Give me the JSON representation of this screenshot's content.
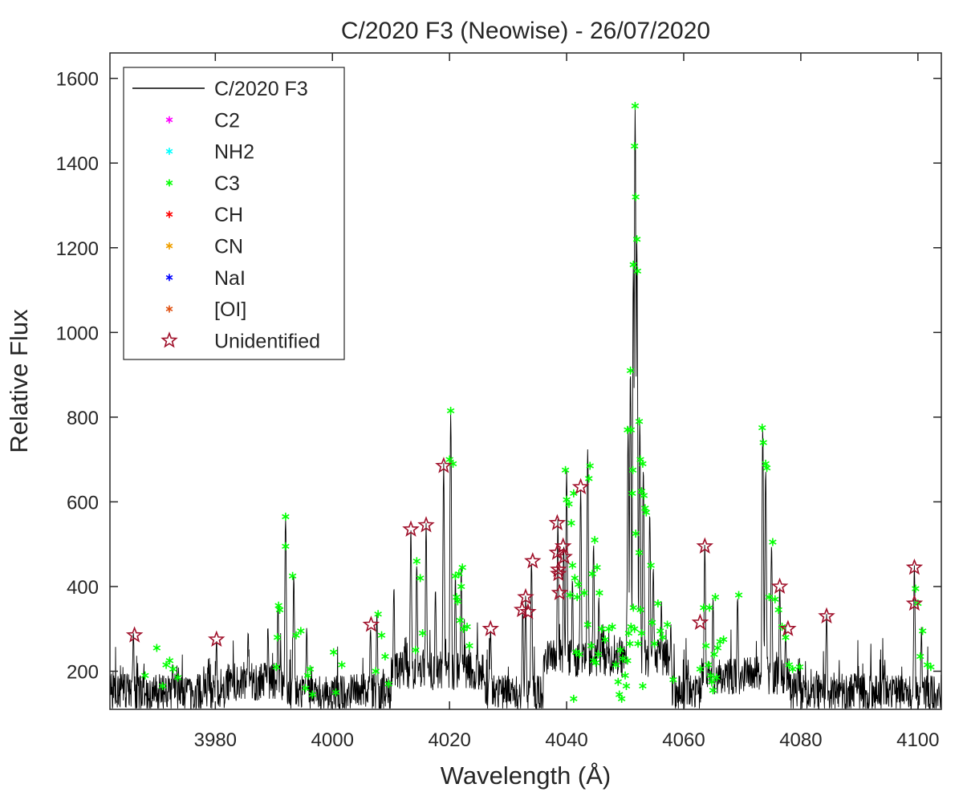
{
  "chart_data": {
    "type": "line",
    "title": "C/2020 F3 (Neowise) - 26/07/2020",
    "xlabel": "Wavelength (Å)",
    "ylabel": "Relative Flux",
    "xlim": [
      3962,
      4104
    ],
    "ylim": [
      110,
      1660
    ],
    "x_ticks": [
      3980,
      4000,
      4020,
      4040,
      4060,
      4080,
      4100
    ],
    "y_ticks": [
      200,
      400,
      600,
      800,
      1000,
      1200,
      1400,
      1600
    ],
    "grid": false,
    "legend_position": "top-left",
    "legend": [
      {
        "label": "C/2020 F3",
        "marker": "line",
        "color": "#000000"
      },
      {
        "label": "C2",
        "marker": "asterisk",
        "color": "#ff00ff"
      },
      {
        "label": "NH2",
        "marker": "asterisk",
        "color": "#00ffff"
      },
      {
        "label": "C3",
        "marker": "asterisk",
        "color": "#00ff00"
      },
      {
        "label": "CH",
        "marker": "asterisk",
        "color": "#ff0000"
      },
      {
        "label": "CN",
        "marker": "asterisk",
        "color": "#f0a000"
      },
      {
        "label": "NaI",
        "marker": "asterisk",
        "color": "#0000ff"
      },
      {
        "label": "[OI]",
        "marker": "asterisk",
        "color": "#e05010"
      },
      {
        "label": "Unidentified",
        "marker": "pentagram",
        "color": "#a0102a"
      }
    ],
    "spectrum_peaks": [
      {
        "x": 3966.0,
        "y": 285
      },
      {
        "x": 3972.7,
        "y": 225
      },
      {
        "x": 3980.2,
        "y": 275
      },
      {
        "x": 3985.6,
        "y": 300
      },
      {
        "x": 3989.0,
        "y": 295
      },
      {
        "x": 3990.7,
        "y": 355
      },
      {
        "x": 3992.0,
        "y": 565
      },
      {
        "x": 3993.4,
        "y": 420
      },
      {
        "x": 3995.6,
        "y": 300
      },
      {
        "x": 4006.5,
        "y": 310
      },
      {
        "x": 4007.6,
        "y": 335
      },
      {
        "x": 4010.5,
        "y": 400
      },
      {
        "x": 4013.4,
        "y": 535
      },
      {
        "x": 4014.4,
        "y": 460
      },
      {
        "x": 4016.0,
        "y": 545
      },
      {
        "x": 4017.6,
        "y": 400
      },
      {
        "x": 4019.0,
        "y": 685
      },
      {
        "x": 4020.2,
        "y": 815
      },
      {
        "x": 4021.0,
        "y": 420
      },
      {
        "x": 4022.0,
        "y": 440
      },
      {
        "x": 4027.0,
        "y": 300
      },
      {
        "x": 4032.5,
        "y": 345
      },
      {
        "x": 4033.0,
        "y": 375
      },
      {
        "x": 4034.0,
        "y": 460
      },
      {
        "x": 4038.5,
        "y": 550
      },
      {
        "x": 4039.5,
        "y": 495
      },
      {
        "x": 4040.0,
        "y": 675
      },
      {
        "x": 4041.0,
        "y": 420
      },
      {
        "x": 4042.4,
        "y": 635
      },
      {
        "x": 4043.6,
        "y": 730
      },
      {
        "x": 4044.6,
        "y": 505
      },
      {
        "x": 4045.5,
        "y": 380
      },
      {
        "x": 4050.5,
        "y": 770
      },
      {
        "x": 4050.9,
        "y": 910
      },
      {
        "x": 4051.4,
        "y": 1160
      },
      {
        "x": 4051.7,
        "y": 1535
      },
      {
        "x": 4052.0,
        "y": 1220
      },
      {
        "x": 4052.5,
        "y": 790
      },
      {
        "x": 4053.1,
        "y": 685
      },
      {
        "x": 4054.2,
        "y": 575
      },
      {
        "x": 4054.8,
        "y": 450
      },
      {
        "x": 4056.2,
        "y": 355
      },
      {
        "x": 4057.8,
        "y": 310
      },
      {
        "x": 4063.6,
        "y": 495
      },
      {
        "x": 4065.0,
        "y": 375
      },
      {
        "x": 4069.2,
        "y": 380
      },
      {
        "x": 4073.5,
        "y": 770
      },
      {
        "x": 4074.0,
        "y": 680
      },
      {
        "x": 4075.0,
        "y": 505
      },
      {
        "x": 4076.4,
        "y": 400
      },
      {
        "x": 4077.4,
        "y": 300
      },
      {
        "x": 4084.4,
        "y": 330
      },
      {
        "x": 4099.4,
        "y": 445
      },
      {
        "x": 4100.6,
        "y": 295
      }
    ],
    "series": [
      {
        "name": "C3",
        "marker": "asterisk",
        "color": "#00ff00",
        "points": [
          [
            3968,
            190
          ],
          [
            3970,
            255
          ],
          [
            3971,
            165
          ],
          [
            3971.6,
            215
          ],
          [
            3972.2,
            225
          ],
          [
            3972.8,
            205
          ],
          [
            3973.6,
            185
          ],
          [
            3990.4,
            210
          ],
          [
            3990.6,
            280
          ],
          [
            3990.8,
            355
          ],
          [
            3991.0,
            345
          ],
          [
            3992.0,
            565
          ],
          [
            3992.0,
            495
          ],
          [
            3993.2,
            425
          ],
          [
            3993.8,
            285
          ],
          [
            3994.6,
            295
          ],
          [
            3995.4,
            160
          ],
          [
            3995.8,
            190
          ],
          [
            3996.2,
            205
          ],
          [
            3996.6,
            145
          ],
          [
            4000.2,
            245
          ],
          [
            4000.6,
            150
          ],
          [
            4001.6,
            215
          ],
          [
            4007.4,
            200
          ],
          [
            4007.8,
            335
          ],
          [
            4008.4,
            285
          ],
          [
            4009.0,
            235
          ],
          [
            4009.6,
            170
          ],
          [
            4014.2,
            250
          ],
          [
            4014.4,
            460
          ],
          [
            4015.0,
            420
          ],
          [
            4015.4,
            290
          ],
          [
            4020.0,
            700
          ],
          [
            4020.2,
            815
          ],
          [
            4020.6,
            690
          ],
          [
            4021.0,
            425
          ],
          [
            4021.2,
            375
          ],
          [
            4021.6,
            430
          ],
          [
            4022.2,
            445
          ],
          [
            4022.0,
            400
          ],
          [
            4021.4,
            365
          ],
          [
            4021.8,
            320
          ],
          [
            4022.4,
            300
          ],
          [
            4023.0,
            305
          ],
          [
            4023.4,
            260
          ],
          [
            4039.8,
            675
          ],
          [
            4040.0,
            605
          ],
          [
            4040.4,
            595
          ],
          [
            4040.8,
            550
          ],
          [
            4041.2,
            620
          ],
          [
            4041.0,
            450
          ],
          [
            4041.4,
            420
          ],
          [
            4041.8,
            375
          ],
          [
            4042.0,
            405
          ],
          [
            4041.6,
            245
          ],
          [
            4042.2,
            240
          ],
          [
            4040.6,
            380
          ],
          [
            4041.2,
            135
          ],
          [
            4043.8,
            655
          ],
          [
            4044.0,
            685
          ],
          [
            4044.4,
            430
          ],
          [
            4044.8,
            510
          ],
          [
            4045.2,
            445
          ],
          [
            4045.6,
            385
          ],
          [
            4043.0,
            385
          ],
          [
            4043.6,
            310
          ],
          [
            4044.2,
            260
          ],
          [
            4044.6,
            225
          ],
          [
            4045.0,
            220
          ],
          [
            4045.4,
            240
          ],
          [
            4046.0,
            300
          ],
          [
            4046.6,
            275
          ],
          [
            4047.2,
            300
          ],
          [
            4047.8,
            305
          ],
          [
            4048.4,
            215
          ],
          [
            4048.8,
            175
          ],
          [
            4049.2,
            250
          ],
          [
            4049.6,
            230
          ],
          [
            4049.0,
            145
          ],
          [
            4049.4,
            135
          ],
          [
            4050.0,
            190
          ],
          [
            4050.4,
            225
          ],
          [
            4050.8,
            265
          ],
          [
            4050.2,
            165
          ],
          [
            4050.4,
            770
          ],
          [
            4050.9,
            910
          ],
          [
            4051.0,
            770
          ],
          [
            4051.3,
            675
          ],
          [
            4051.4,
            1160
          ],
          [
            4051.6,
            1440
          ],
          [
            4051.7,
            1535
          ],
          [
            4051.8,
            1320
          ],
          [
            4052.0,
            1220
          ],
          [
            4052.1,
            1145
          ],
          [
            4052.4,
            790
          ],
          [
            4052.6,
            700
          ],
          [
            4052.8,
            625
          ],
          [
            4053.0,
            690
          ],
          [
            4053.2,
            615
          ],
          [
            4053.4,
            585
          ],
          [
            4053.6,
            575
          ],
          [
            4051.2,
            620
          ],
          [
            4051.8,
            525
          ],
          [
            4052.4,
            480
          ],
          [
            4052.6,
            345
          ],
          [
            4051.6,
            300
          ],
          [
            4051.4,
            350
          ],
          [
            4052.2,
            265
          ],
          [
            4051.0,
            305
          ],
          [
            4050.6,
            290
          ],
          [
            4052.8,
            290
          ],
          [
            4053.0,
            165
          ],
          [
            4054.4,
            450
          ],
          [
            4054.6,
            315
          ],
          [
            4055.0,
            265
          ],
          [
            4055.6,
            360
          ],
          [
            4056.0,
            295
          ],
          [
            4056.4,
            280
          ],
          [
            4057.2,
            310
          ],
          [
            4058.2,
            180
          ],
          [
            4062.8,
            205
          ],
          [
            4063.4,
            350
          ],
          [
            4063.8,
            260
          ],
          [
            4064.2,
            215
          ],
          [
            4064.6,
            190
          ],
          [
            4064.8,
            175
          ],
          [
            4065.0,
            155
          ],
          [
            4065.2,
            240
          ],
          [
            4065.6,
            185
          ],
          [
            4065.8,
            255
          ],
          [
            4066.2,
            270
          ],
          [
            4066.8,
            275
          ],
          [
            4065.4,
            375
          ],
          [
            4064.4,
            350
          ],
          [
            4069.4,
            380
          ],
          [
            4073.4,
            775
          ],
          [
            4073.6,
            740
          ],
          [
            4074.0,
            690
          ],
          [
            4074.2,
            680
          ],
          [
            4074.6,
            375
          ],
          [
            4075.2,
            505
          ],
          [
            4075.6,
            370
          ],
          [
            4076.2,
            345
          ],
          [
            4076.8,
            305
          ],
          [
            4077.4,
            280
          ],
          [
            4078.0,
            215
          ],
          [
            4078.6,
            205
          ],
          [
            4079.8,
            210
          ],
          [
            4099.6,
            395
          ],
          [
            4100.0,
            360
          ],
          [
            4100.4,
            235
          ],
          [
            4100.8,
            295
          ],
          [
            4101.6,
            215
          ],
          [
            4102.2,
            210
          ]
        ]
      },
      {
        "name": "Unidentified",
        "marker": "pentagram",
        "color": "#a0102a",
        "points": [
          [
            3966.2,
            285
          ],
          [
            3980.2,
            275
          ],
          [
            4006.6,
            310
          ],
          [
            4013.4,
            535
          ],
          [
            4016.0,
            545
          ],
          [
            4019.0,
            685
          ],
          [
            4027.0,
            300
          ],
          [
            4032.4,
            345
          ],
          [
            4033.0,
            375
          ],
          [
            4033.4,
            340
          ],
          [
            4034.2,
            460
          ],
          [
            4038.4,
            550
          ],
          [
            4038.4,
            480
          ],
          [
            4038.6,
            440
          ],
          [
            4038.6,
            430
          ],
          [
            4038.8,
            385
          ],
          [
            4039.4,
            495
          ],
          [
            4039.6,
            470
          ],
          [
            4042.4,
            635
          ],
          [
            4062.8,
            315
          ],
          [
            4063.6,
            495
          ],
          [
            4076.4,
            400
          ],
          [
            4077.8,
            300
          ],
          [
            4084.4,
            330
          ],
          [
            4099.4,
            445
          ],
          [
            4099.4,
            360
          ]
        ]
      }
    ]
  }
}
